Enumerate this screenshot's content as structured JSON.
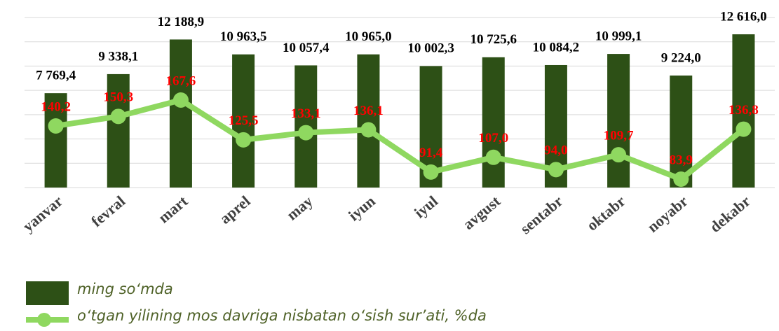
{
  "chart_data": {
    "type": "bar_line",
    "categories": [
      "yanvar",
      "fevral",
      "mart",
      "aprel",
      "may",
      "iyun",
      "iyul",
      "avgust",
      "sentabr",
      "oktabr",
      "noyabr",
      "dekabr"
    ],
    "series": [
      {
        "name": "ming so‘mda",
        "type": "bar",
        "color": "#2d5016",
        "values": [
          7769.4,
          9338.1,
          12188.9,
          10963.5,
          10057.4,
          10965.0,
          10002.3,
          10725.6,
          10084.2,
          10999.1,
          9224.0,
          12616.0
        ],
        "value_labels": [
          "7 769,4",
          "9 338,1",
          "12 188,9",
          "10 963,5",
          "10 057,4",
          "10 965,0",
          "10 002,3",
          "10 725,6",
          "10 084,2",
          "10 999,1",
          "9 224,0",
          "12 616,0"
        ],
        "label_color": "#000000"
      },
      {
        "name": "o‘tgan yilining mos davriga nisbatan o‘sish sur’ati, %da",
        "type": "line",
        "axis": "y2",
        "color": "#8fd860",
        "values": [
          140.2,
          150.3,
          167.6,
          125.5,
          133.1,
          136.1,
          91.4,
          107.0,
          94.0,
          109.7,
          83.9,
          136.8
        ],
        "value_labels": [
          "140,2",
          "150,3",
          "167,6",
          "125,5",
          "133,1",
          "136,1",
          "91,4",
          "107,0",
          "94,0",
          "109,7",
          "83,9",
          "136,8"
        ],
        "label_color": "#ff0000"
      }
    ],
    "ylim": [
      0,
      14000
    ],
    "yticks": [
      0,
      2000,
      4000,
      6000,
      8000,
      10000,
      12000,
      14000
    ],
    "y2lim": [
      75,
      255
    ],
    "grid": true
  }
}
